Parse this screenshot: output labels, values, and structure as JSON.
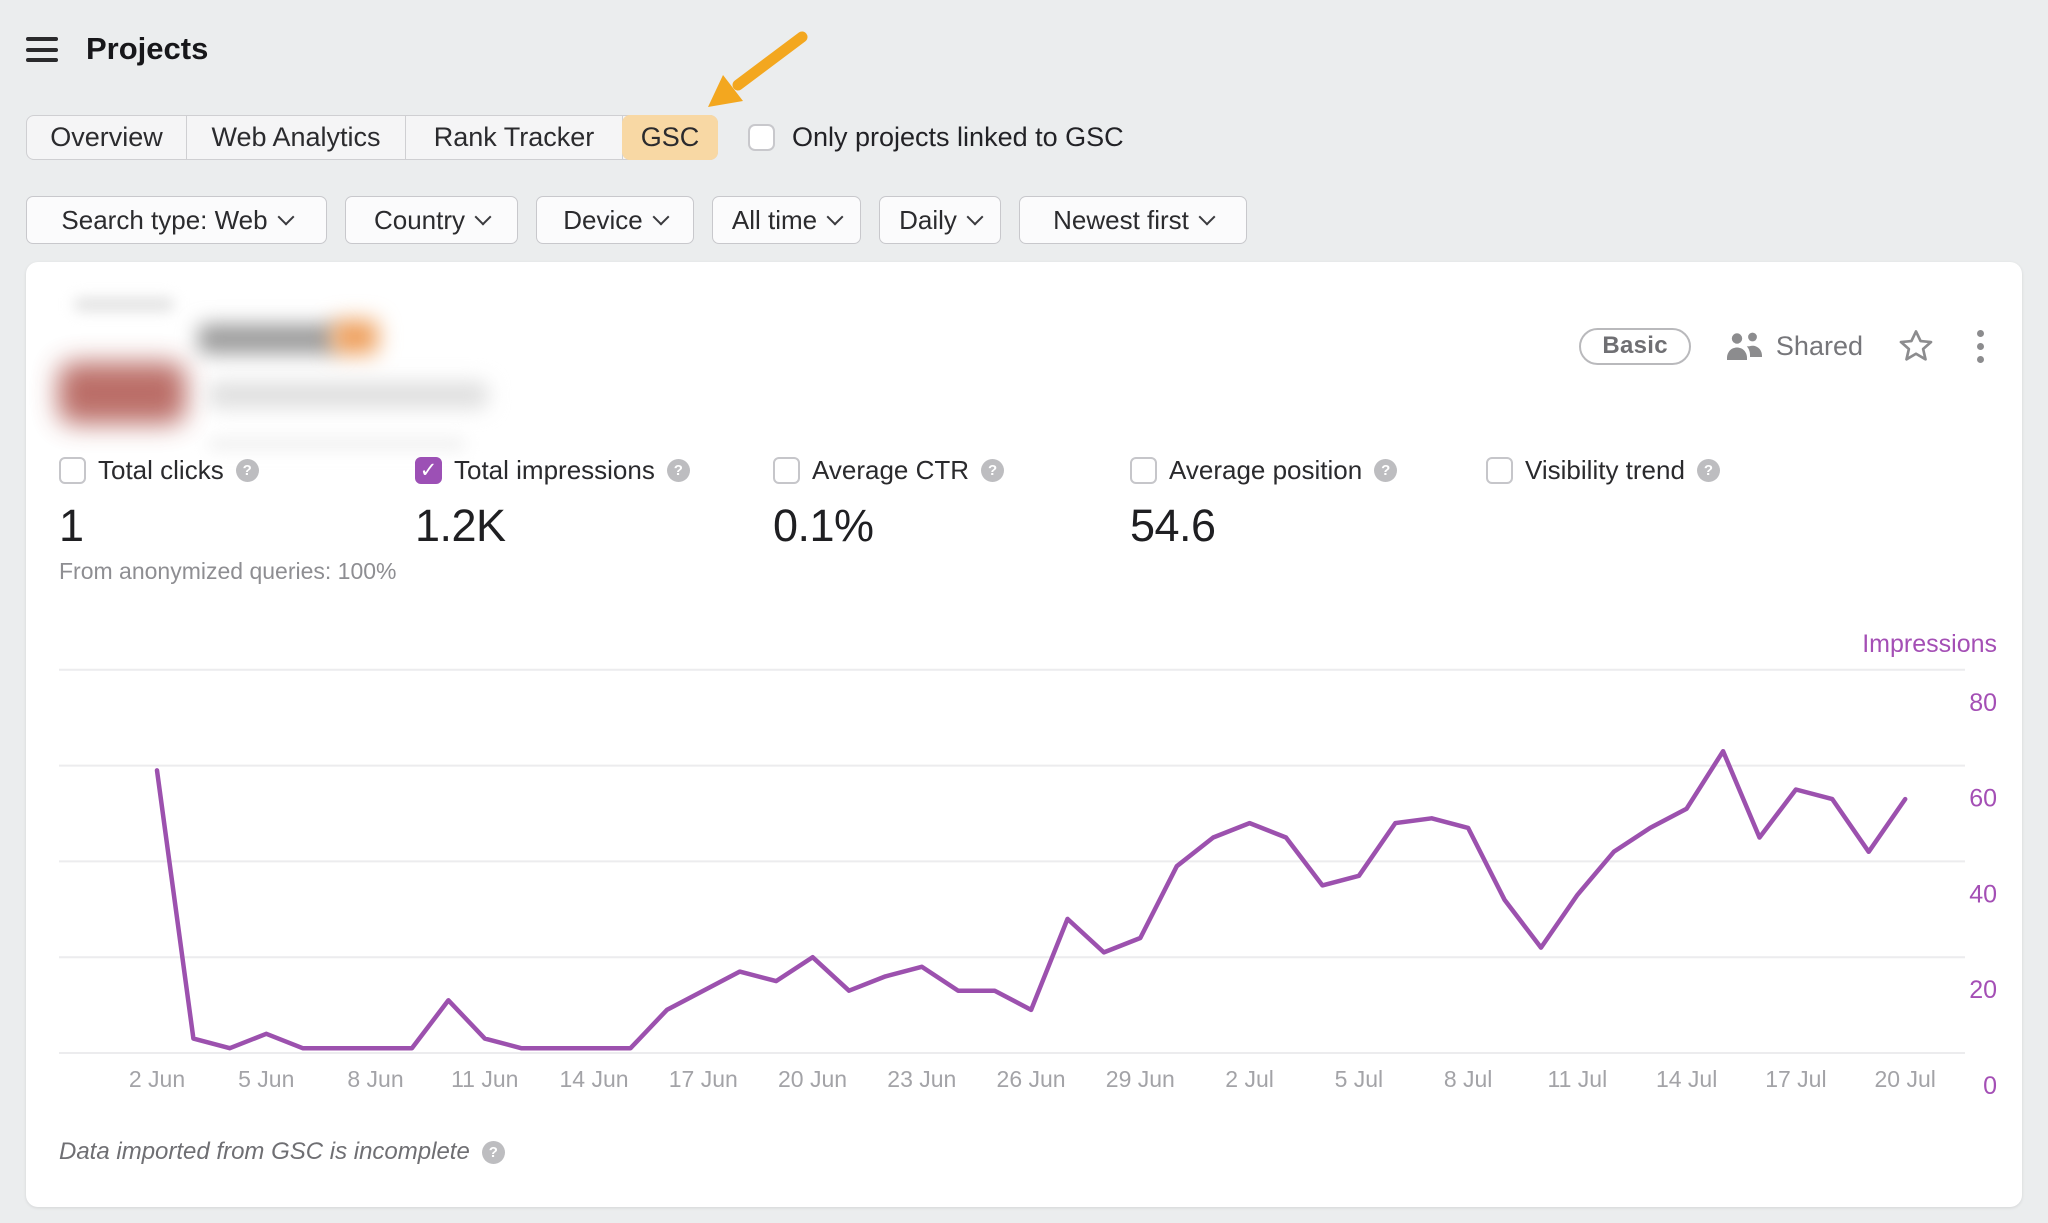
{
  "header": {
    "title": "Projects"
  },
  "tabs": {
    "items": [
      "Overview",
      "Web Analytics",
      "Rank Tracker",
      "GSC"
    ],
    "active": "GSC"
  },
  "gsc_filter_checkbox": {
    "label": "Only projects linked to GSC",
    "checked": false
  },
  "filters": [
    {
      "label": "Search type: Web"
    },
    {
      "label": "Country"
    },
    {
      "label": "Device"
    },
    {
      "label": "All time"
    },
    {
      "label": "Daily"
    },
    {
      "label": "Newest first"
    }
  ],
  "project_card": {
    "plan_badge": "Basic",
    "shared_label": "Shared",
    "metrics": [
      {
        "label": "Total clicks",
        "value": "1",
        "checked": false
      },
      {
        "label": "Total impressions",
        "value": "1.2K",
        "checked": true
      },
      {
        "label": "Average CTR",
        "value": "0.1%",
        "checked": false
      },
      {
        "label": "Average position",
        "value": "54.6",
        "checked": false
      },
      {
        "label": "Visibility trend",
        "value": "",
        "checked": false
      }
    ],
    "anonymized_note": "From anonymized queries: 100%",
    "footnote": "Data imported from GSC is incomplete"
  },
  "chart_data": {
    "type": "line",
    "title": "",
    "ylabel_right": "Impressions",
    "legend_position": "top-right",
    "grid": true,
    "y_ticks": [
      0,
      20,
      40,
      60,
      80
    ],
    "ylim": [
      0,
      88
    ],
    "categories": [
      "2 Jun",
      "3 Jun",
      "4 Jun",
      "5 Jun",
      "6 Jun",
      "7 Jun",
      "8 Jun",
      "9 Jun",
      "10 Jun",
      "11 Jun",
      "12 Jun",
      "13 Jun",
      "14 Jun",
      "15 Jun",
      "16 Jun",
      "17 Jun",
      "18 Jun",
      "19 Jun",
      "20 Jun",
      "21 Jun",
      "22 Jun",
      "23 Jun",
      "24 Jun",
      "25 Jun",
      "26 Jun",
      "27 Jun",
      "28 Jun",
      "29 Jun",
      "30 Jun",
      "1 Jul",
      "2 Jul",
      "3 Jul",
      "4 Jul",
      "5 Jul",
      "6 Jul",
      "7 Jul",
      "8 Jul",
      "9 Jul",
      "10 Jul",
      "11 Jul",
      "12 Jul",
      "13 Jul",
      "14 Jul",
      "15 Jul",
      "16 Jul",
      "17 Jul",
      "18 Jul",
      "19 Jul",
      "20 Jul"
    ],
    "values": [
      59,
      3,
      1,
      4,
      1,
      1,
      1,
      1,
      11,
      3,
      1,
      1,
      1,
      1,
      9,
      13,
      17,
      15,
      20,
      13,
      16,
      18,
      13,
      13,
      9,
      28,
      21,
      24,
      39,
      45,
      48,
      45,
      35,
      37,
      48,
      49,
      47,
      32,
      22,
      33,
      42,
      47,
      51,
      63,
      45,
      55,
      53,
      42,
      53
    ],
    "x_tick_every_days": 3,
    "line_color": "#9c51ae",
    "axis_label_color": "#a44fb5",
    "x_label_color": "#a3a3a7",
    "grid_color": "#ececee"
  },
  "icons": {
    "help_glyph": "?",
    "check_glyph": "✓"
  },
  "colors": {
    "page_bg": "#ebedee",
    "card_bg": "#ffffff",
    "active_tab_bg": "#f8d8a4",
    "annotation_arrow": "#f3a71f",
    "checked_checkbox": "#9c50b5"
  }
}
